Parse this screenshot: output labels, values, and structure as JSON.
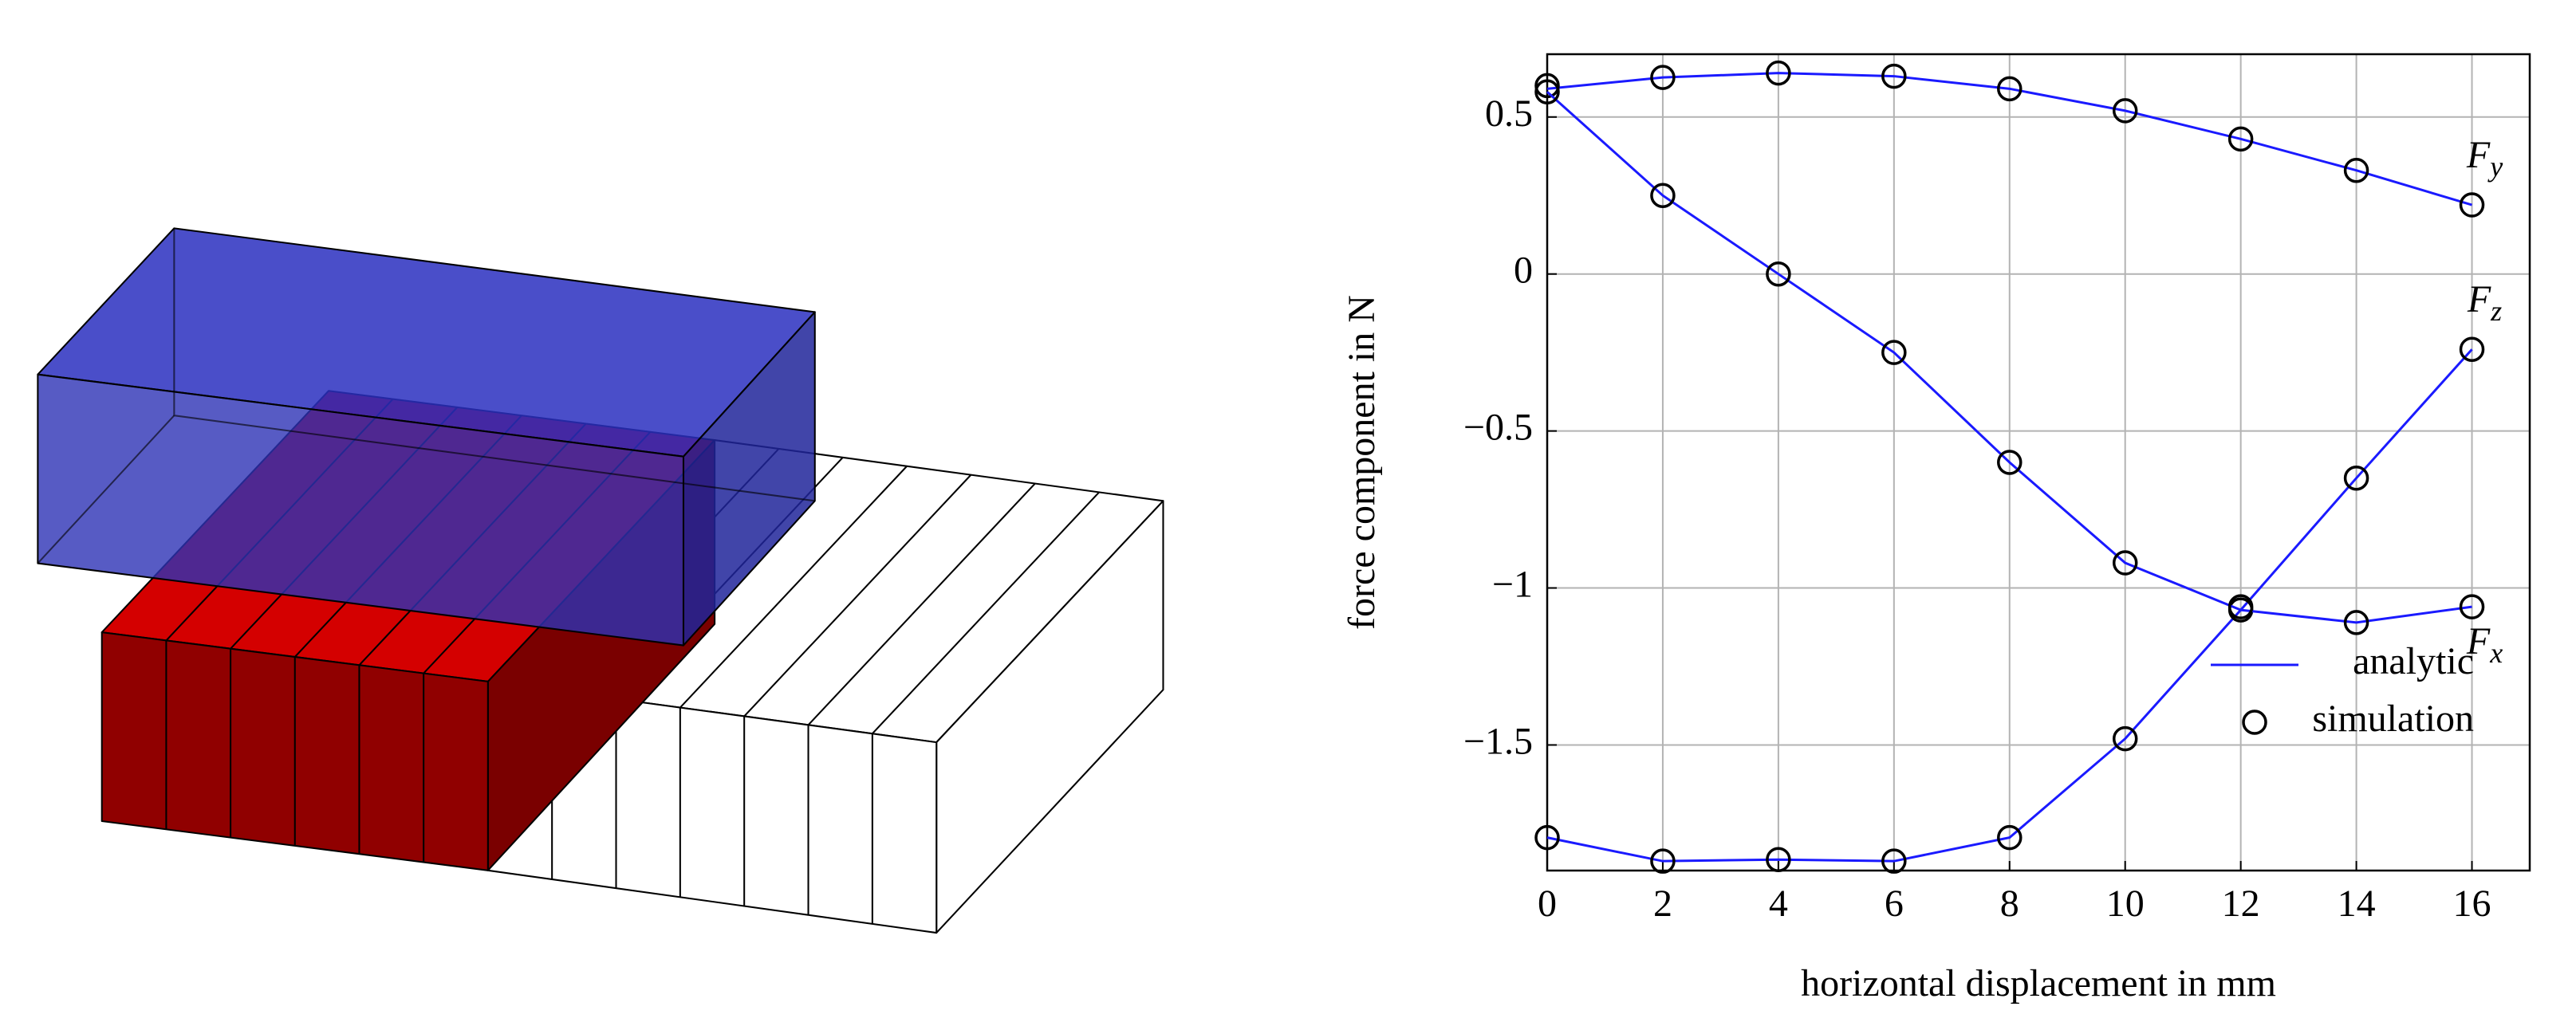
{
  "chart_data": {
    "type": "line",
    "xlabel": "horizontal displacement in mm",
    "ylabel": "force component in N",
    "xlim": [
      0,
      17
    ],
    "ylim": [
      -1.9,
      0.7
    ],
    "xticks": [
      0,
      2,
      4,
      6,
      8,
      10,
      12,
      14,
      16
    ],
    "yticks": [
      {
        "value": -1.5,
        "label": "−1.5"
      },
      {
        "value": -1,
        "label": "−1"
      },
      {
        "value": -0.5,
        "label": "−0.5"
      },
      0,
      0.5
    ],
    "grid": true,
    "x": [
      0,
      2,
      4,
      6,
      8,
      10,
      12,
      14,
      16
    ],
    "line_color": "#1a1aff",
    "marker_color": "#000000",
    "legend": {
      "position": "lower right",
      "analytic": "analytic",
      "simulation": "simulation"
    },
    "series": [
      {
        "label": "F",
        "subscript": "y",
        "label_side": "above",
        "analytic": [
          0.59,
          0.626,
          0.64,
          0.63,
          0.59,
          0.52,
          0.43,
          0.33,
          0.22
        ],
        "simulation": [
          0.6,
          0.626,
          0.64,
          0.63,
          0.59,
          0.52,
          0.43,
          0.33,
          0.22
        ]
      },
      {
        "label": "F",
        "subscript": "z",
        "label_side": "above",
        "analytic": [
          -1.795,
          -1.87,
          -1.865,
          -1.87,
          -1.795,
          -1.48,
          -1.07,
          -0.65,
          -0.24
        ],
        "simulation": [
          -1.795,
          -1.87,
          -1.865,
          -1.87,
          -1.795,
          -1.48,
          -1.07,
          -0.65,
          -0.24
        ]
      },
      {
        "label": "F",
        "subscript": "x",
        "label_side": "below",
        "analytic": [
          0.58,
          0.25,
          0,
          -0.25,
          -0.6,
          -0.92,
          -1.07,
          -1.11,
          -1.06
        ],
        "simulation": [
          0.58,
          0.25,
          0,
          -0.25,
          -0.6,
          -0.92,
          -1.06,
          -1.11,
          -1.06
        ]
      }
    ]
  }
}
